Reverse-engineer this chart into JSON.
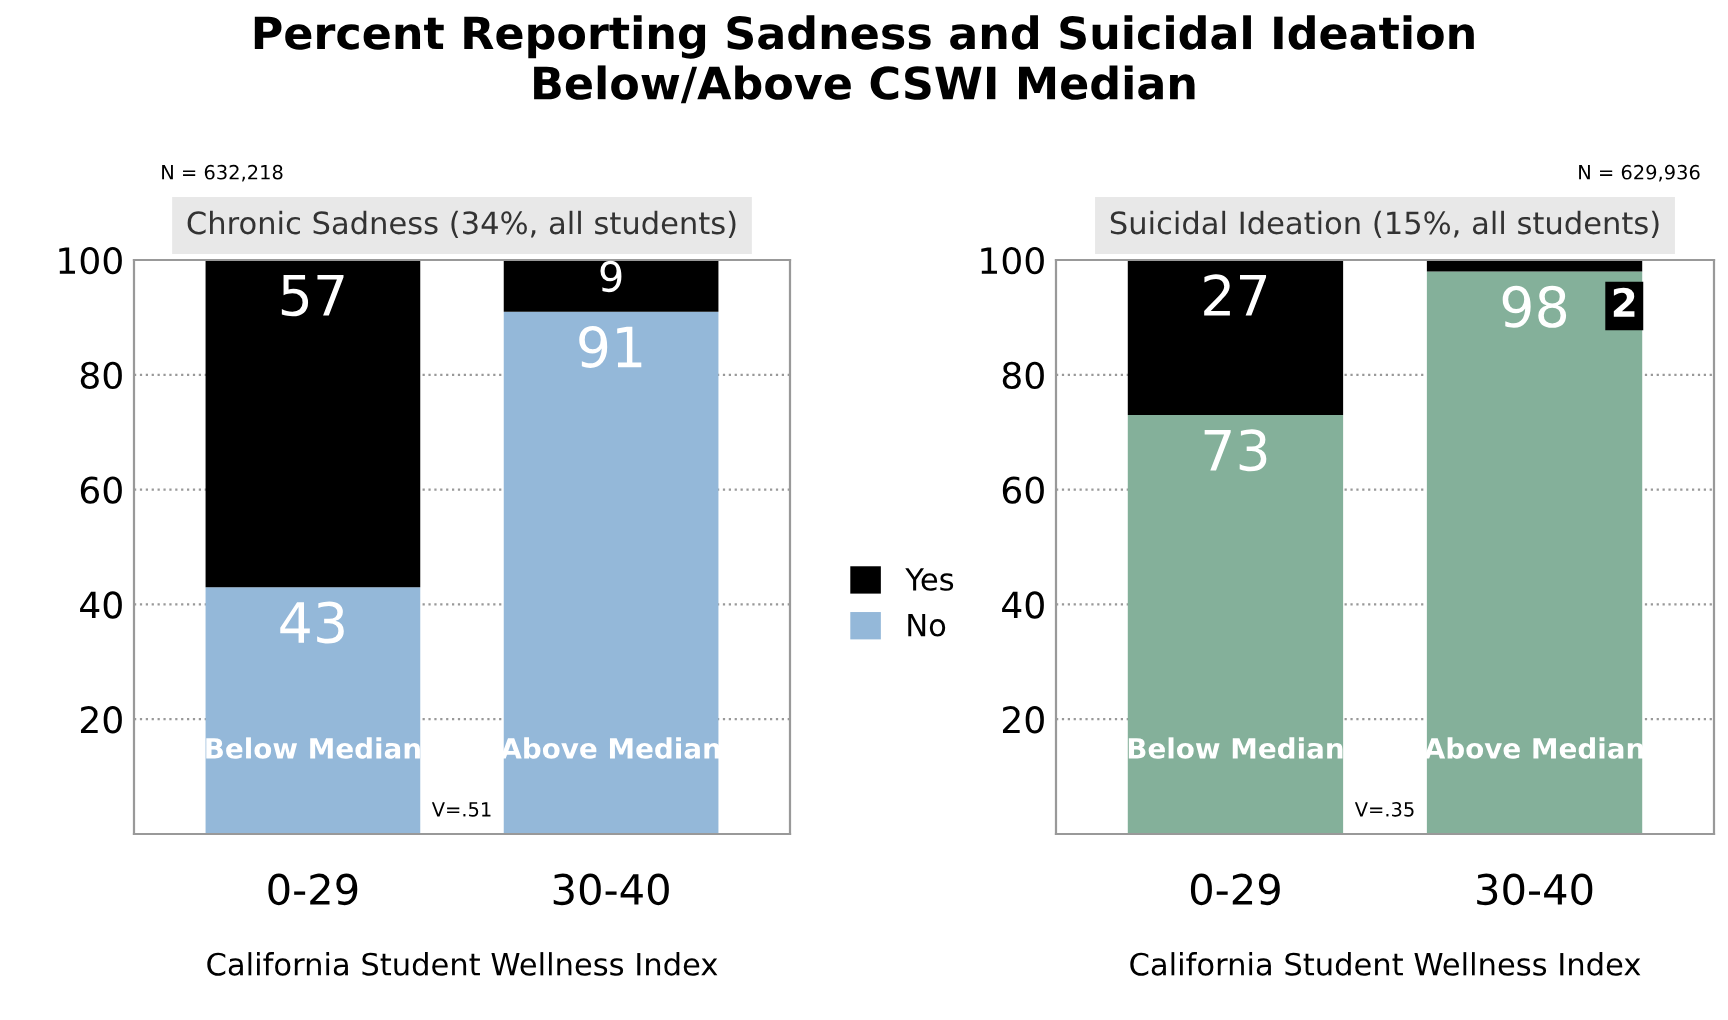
{
  "chart_data": [
    {
      "type": "bar",
      "title": "Percent Reporting Sadness and Suicidal Ideation\nBelow/Above CSWI Median",
      "subtitle": "Chronic Sadness (34%, all students)",
      "xlabel": "California Student Wellness Index",
      "categories": [
        "0-29",
        "30-40"
      ],
      "stacked": true,
      "ylim": [
        0,
        100
      ],
      "yticks": [
        {
          "value": 0,
          "label": null
        },
        20,
        40,
        60,
        80,
        100
      ],
      "grid": "y",
      "legend": "right",
      "data_labels": true,
      "series": [
        {
          "name": "No",
          "color": "#94b8d9",
          "values": [
            43,
            91
          ]
        },
        {
          "name": "Yes",
          "color": "#000000",
          "values": [
            57,
            9
          ]
        }
      ],
      "annotations": [
        "N = 632,218",
        "V=.51",
        "Below Median",
        "Above Median"
      ]
    },
    {
      "type": "bar",
      "subtitle": "Suicidal Ideation (15%, all students)",
      "xlabel": "California Student Wellness Index",
      "categories": [
        "0-29",
        "30-40"
      ],
      "stacked": true,
      "ylim": [
        0,
        100
      ],
      "yticks": [
        {
          "value": 0,
          "label": null
        },
        20,
        40,
        60,
        80,
        100
      ],
      "grid": "y",
      "data_labels": true,
      "series": [
        {
          "color": "#84b09a",
          "values": [
            73,
            98
          ]
        },
        {
          "color": "#000000",
          "values": [
            27,
            2
          ]
        }
      ],
      "annotations": [
        "N = 629,936",
        "V=.35",
        "Below Median",
        "Above Median"
      ]
    }
  ]
}
